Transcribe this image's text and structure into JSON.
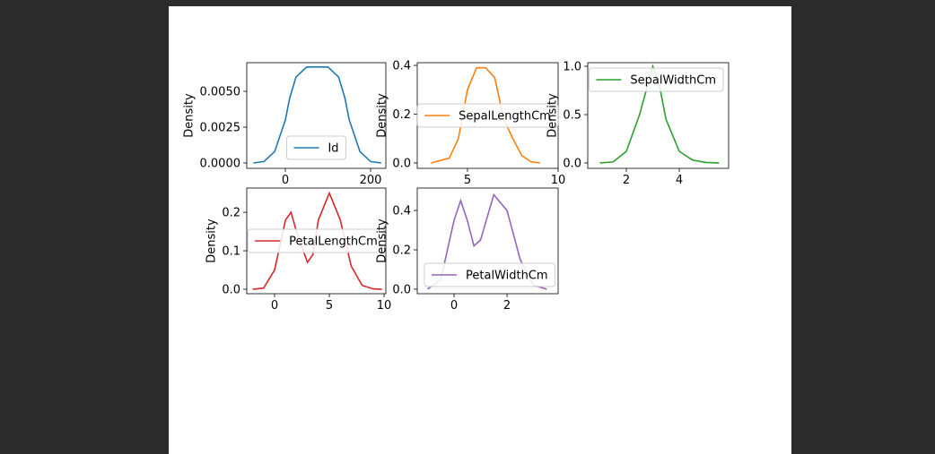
{
  "chart_data": [
    {
      "type": "line",
      "ylabel": "Density",
      "legend_loc": "lower center",
      "xlim": [
        -90.5,
        235.8
      ],
      "ylim": [
        -0.000375,
        0.007
      ],
      "xticks": [
        0,
        200
      ],
      "yticks": [
        {
          "value": 0,
          "label": "0.0000"
        },
        {
          "value": 0.0025,
          "label": "0.0025"
        },
        {
          "value": 0.005,
          "label": "0.0050"
        }
      ],
      "x": [
        -75,
        -50,
        -25,
        0,
        10,
        25,
        50,
        100,
        125,
        140,
        150,
        175,
        200,
        225
      ],
      "series": [
        {
          "name": "Id",
          "color": "#1f77b4",
          "values": [
            0,
            0.0001,
            0.0008,
            0.003,
            0.0045,
            0.006,
            0.0067,
            0.0067,
            0.006,
            0.0045,
            0.003,
            0.0008,
            0.0001,
            0
          ]
        }
      ]
    },
    {
      "type": "line",
      "ylabel": "Density",
      "legend_loc": "center",
      "xlim": [
        2.23,
        10
      ],
      "ylim": [
        -0.022,
        0.411
      ],
      "xticks": [
        5,
        10
      ],
      "yticks": [
        {
          "value": 0,
          "label": "0.0"
        },
        0.2,
        0.4
      ],
      "x": [
        3,
        4,
        4.5,
        5,
        5.5,
        6,
        6.5,
        7,
        7.5,
        8,
        8.5,
        9
      ],
      "series": [
        {
          "name": "SepalLengthCm",
          "color": "#ff7f0e",
          "values": [
            0,
            0.02,
            0.1,
            0.3,
            0.39,
            0.39,
            0.35,
            0.18,
            0.1,
            0.03,
            0.005,
            0
          ]
        }
      ]
    },
    {
      "type": "line",
      "ylabel": "Density",
      "legend_loc": "upper right",
      "xlim": [
        0.542,
        5.864
      ],
      "ylim": [
        -0.056,
        1.037
      ],
      "xticks": [
        2,
        4
      ],
      "yticks": [
        {
          "value": 0,
          "label": "0.0"
        },
        0.5,
        {
          "value": 1,
          "label": "1.0"
        }
      ],
      "x": [
        1,
        1.5,
        2,
        2.5,
        3,
        3.25,
        3.5,
        4,
        4.5,
        5,
        5.5
      ],
      "series": [
        {
          "name": "SepalWidthCm",
          "color": "#2ca02c",
          "values": [
            0,
            0.01,
            0.12,
            0.5,
            1.0,
            0.8,
            0.45,
            0.12,
            0.03,
            0.005,
            0
          ]
        }
      ]
    },
    {
      "type": "line",
      "ylabel": "Density",
      "legend_loc": "center",
      "xlim": [
        -2.54,
        10.16
      ],
      "ylim": [
        -0.0116,
        0.263
      ],
      "xticks": [
        0,
        5,
        10
      ],
      "yticks": [
        {
          "value": 0,
          "label": "0.0"
        },
        0.1,
        0.2
      ],
      "x": [
        -2,
        -1,
        0,
        1,
        1.5,
        2,
        3,
        3.5,
        4,
        5,
        6,
        7,
        8,
        9,
        9.8
      ],
      "series": [
        {
          "name": "PetalLengthCm",
          "color": "#d62728",
          "values": [
            0,
            0.003,
            0.05,
            0.18,
            0.2,
            0.15,
            0.07,
            0.09,
            0.18,
            0.25,
            0.18,
            0.06,
            0.01,
            0.001,
            0
          ]
        }
      ]
    },
    {
      "type": "line",
      "ylabel": "Density",
      "legend_loc": "lower left",
      "xlim": [
        -1.39,
        3.93
      ],
      "ylim": [
        -0.023,
        0.514
      ],
      "xticks": [
        0,
        2
      ],
      "yticks": [
        {
          "value": 0,
          "label": "0.0"
        },
        0.2,
        0.4
      ],
      "x": [
        -1,
        -0.5,
        0,
        0.25,
        0.5,
        0.75,
        1,
        1.5,
        2,
        2.5,
        3,
        3.5
      ],
      "series": [
        {
          "name": "PetalWidthCm",
          "color": "#9467bd",
          "values": [
            0,
            0.05,
            0.35,
            0.45,
            0.35,
            0.22,
            0.25,
            0.48,
            0.4,
            0.15,
            0.02,
            0
          ]
        }
      ]
    }
  ]
}
